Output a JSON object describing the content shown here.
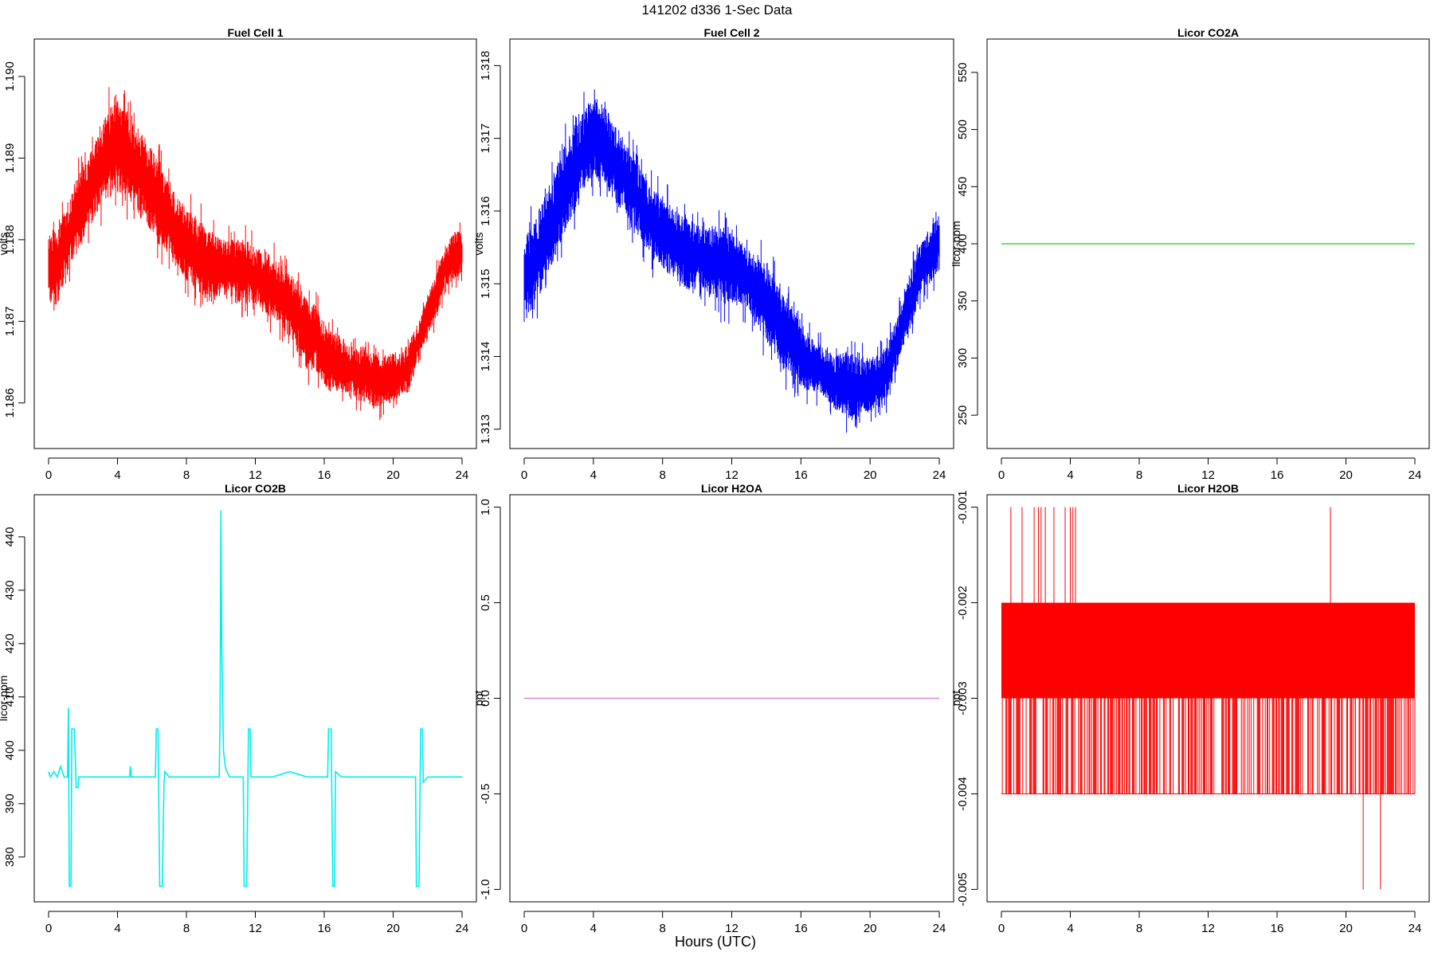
{
  "figure": {
    "main_title": "141202   d336   1-Sec Data",
    "x_axis_title": "Hours (UTC)"
  },
  "chart_data": [
    {
      "type": "line",
      "title": "Fuel Cell 1",
      "ylabel": "volts",
      "color": "#ff0000",
      "xlim": [
        0,
        24
      ],
      "ylim": [
        1.1855,
        1.1904
      ],
      "xticks": [
        0,
        4,
        8,
        12,
        16,
        20,
        24
      ],
      "yticks": [
        "1.186",
        "1.187",
        "1.188",
        "1.189",
        "1.190"
      ],
      "band": true,
      "x": [
        0,
        0.5,
        1,
        1.5,
        2,
        2.5,
        3,
        3.5,
        4,
        4.5,
        5,
        5.5,
        6,
        6.5,
        7,
        7.5,
        8,
        8.5,
        9,
        9.5,
        10,
        10.5,
        11,
        11.5,
        12,
        12.5,
        13,
        13.5,
        14,
        14.5,
        15,
        15.5,
        16,
        16.5,
        17,
        17.5,
        18,
        18.5,
        19,
        19.5,
        20,
        20.5,
        21,
        21.5,
        22,
        22.5,
        23,
        23.5,
        24
      ],
      "low": [
        1.1872,
        1.1872,
        1.1875,
        1.1878,
        1.188,
        1.1882,
        1.1884,
        1.1885,
        1.1886,
        1.1885,
        1.1884,
        1.1882,
        1.1881,
        1.1879,
        1.1878,
        1.1876,
        1.1875,
        1.1874,
        1.1873,
        1.1872,
        1.1873,
        1.1873,
        1.1872,
        1.1872,
        1.1872,
        1.1871,
        1.187,
        1.1869,
        1.1868,
        1.1866,
        1.1864,
        1.1864,
        1.1862,
        1.1861,
        1.1861,
        1.1861,
        1.186,
        1.186,
        1.1859,
        1.186,
        1.186,
        1.1861,
        1.1862,
        1.1866,
        1.1868,
        1.187,
        1.1874,
        1.1875,
        1.1876
      ],
      "high": [
        1.1881,
        1.1882,
        1.1884,
        1.1887,
        1.1889,
        1.1891,
        1.1894,
        1.1896,
        1.1897,
        1.1896,
        1.1894,
        1.1893,
        1.1891,
        1.1889,
        1.1887,
        1.1885,
        1.1884,
        1.1883,
        1.1882,
        1.1881,
        1.188,
        1.188,
        1.188,
        1.188,
        1.1879,
        1.1879,
        1.1878,
        1.1877,
        1.1876,
        1.1875,
        1.1873,
        1.1872,
        1.187,
        1.1869,
        1.1868,
        1.1867,
        1.1867,
        1.1867,
        1.1866,
        1.1866,
        1.1866,
        1.1866,
        1.1868,
        1.187,
        1.1873,
        1.1876,
        1.1879,
        1.1881,
        1.1881
      ]
    },
    {
      "type": "line",
      "title": "Fuel Cell 2",
      "ylabel": "volts",
      "color": "#0000ff",
      "xlim": [
        0,
        24
      ],
      "ylim": [
        1.3128,
        1.3183
      ],
      "xticks": [
        0,
        4,
        8,
        12,
        16,
        20,
        24
      ],
      "yticks": [
        "1.313",
        "1.314",
        "1.315",
        "1.316",
        "1.317",
        "1.318"
      ],
      "band": true,
      "x": [
        0,
        0.5,
        1,
        1.5,
        2,
        2.5,
        3,
        3.5,
        4,
        4.5,
        5,
        5.5,
        6,
        6.5,
        7,
        7.5,
        8,
        8.5,
        9,
        9.5,
        10,
        10.5,
        11,
        11.5,
        12,
        12.5,
        13,
        13.5,
        14,
        14.5,
        15,
        15.5,
        16,
        16.5,
        17,
        17.5,
        18,
        18.5,
        19,
        19.5,
        20,
        20.5,
        21,
        21.5,
        22,
        22.5,
        23,
        23.5,
        24
      ],
      "low": [
        1.3146,
        1.3146,
        1.3149,
        1.3152,
        1.3155,
        1.3158,
        1.316,
        1.3163,
        1.3165,
        1.3164,
        1.3162,
        1.316,
        1.3159,
        1.3157,
        1.3155,
        1.3153,
        1.3152,
        1.3151,
        1.315,
        1.3149,
        1.315,
        1.3149,
        1.3148,
        1.3147,
        1.3147,
        1.3147,
        1.3146,
        1.3144,
        1.3142,
        1.314,
        1.3138,
        1.3137,
        1.3136,
        1.3135,
        1.3135,
        1.3134,
        1.3133,
        1.3132,
        1.3131,
        1.3132,
        1.3132,
        1.3133,
        1.3134,
        1.3138,
        1.3142,
        1.3145,
        1.3149,
        1.315,
        1.3152
      ],
      "high": [
        1.3157,
        1.3158,
        1.3161,
        1.3164,
        1.3167,
        1.317,
        1.3172,
        1.3174,
        1.3176,
        1.3175,
        1.3173,
        1.3171,
        1.3169,
        1.3167,
        1.3165,
        1.3163,
        1.3162,
        1.3161,
        1.316,
        1.3159,
        1.3158,
        1.3158,
        1.3158,
        1.3158,
        1.3157,
        1.3156,
        1.3155,
        1.3154,
        1.3153,
        1.3151,
        1.3149,
        1.3147,
        1.3145,
        1.3143,
        1.3142,
        1.3141,
        1.314,
        1.3141,
        1.314,
        1.314,
        1.314,
        1.314,
        1.3142,
        1.3145,
        1.3149,
        1.3153,
        1.3156,
        1.3158,
        1.3159
      ]
    },
    {
      "type": "line",
      "title": "Licor CO2A",
      "ylabel": "licor-ppm",
      "color": "#33dd33",
      "xlim": [
        0,
        24
      ],
      "ylim": [
        225,
        575
      ],
      "xticks": [
        0,
        4,
        8,
        12,
        16,
        20,
        24
      ],
      "yticks": [
        "250",
        "300",
        "350",
        "400",
        "450",
        "500",
        "550"
      ],
      "x": [
        0,
        24
      ],
      "values": [
        400,
        400
      ]
    },
    {
      "type": "line",
      "title": "Licor CO2B",
      "ylabel": "licor-ppm",
      "color": "#00eeee",
      "xlim": [
        0,
        24
      ],
      "ylim": [
        372.5,
        447
      ],
      "xticks": [
        0,
        4,
        8,
        12,
        16,
        20,
        24
      ],
      "yticks": [
        "380",
        "390",
        "400",
        "410",
        "420",
        "430",
        "440"
      ],
      "x": [
        0,
        0.1,
        0.3,
        0.5,
        0.7,
        0.9,
        1.1,
        1.15,
        1.2,
        1.25,
        1.3,
        1.35,
        1.45,
        1.5,
        1.6,
        1.7,
        1.75,
        2.0,
        3.0,
        4.0,
        4.7,
        4.75,
        4.8,
        5.5,
        6.2,
        6.25,
        6.3,
        6.35,
        6.45,
        6.5,
        6.6,
        6.7,
        6.75,
        7.0,
        8.0,
        9.0,
        9.5,
        9.9,
        9.95,
        10.0,
        10.05,
        10.1,
        10.15,
        10.25,
        10.35,
        10.5,
        11.0,
        11.3,
        11.35,
        11.45,
        11.5,
        11.6,
        11.7,
        11.75,
        12.0,
        13.0,
        14.0,
        15.0,
        16.0,
        16.2,
        16.25,
        16.35,
        16.4,
        16.5,
        16.6,
        16.65,
        17.0,
        18.0,
        19.0,
        20.0,
        21.0,
        21.3,
        21.35,
        21.45,
        21.5,
        21.6,
        21.7,
        21.75,
        22.0,
        23.0,
        24.0
      ],
      "values": [
        396,
        395,
        396,
        395,
        397,
        395,
        395,
        408,
        374.5,
        374.5,
        374.5,
        404,
        404,
        404,
        393,
        393,
        395,
        395,
        395,
        395,
        395,
        397,
        395,
        395,
        395,
        404,
        404,
        404,
        374.5,
        374.5,
        374.5,
        394,
        396,
        395,
        395,
        395,
        395,
        395,
        405,
        445,
        420,
        410,
        400,
        397,
        396,
        395,
        395,
        395,
        374.5,
        374.5,
        374.5,
        404,
        404,
        395,
        395,
        395,
        396,
        395,
        395,
        395,
        404,
        404,
        404,
        374.5,
        374.5,
        396,
        395,
        395,
        395,
        395,
        395,
        395,
        374.5,
        374.5,
        374.5,
        404,
        404,
        394,
        395,
        395,
        395
      ]
    },
    {
      "type": "line",
      "title": "Licor H2OA",
      "ylabel": "ppt",
      "color": "#dd88dd",
      "xlim": [
        0,
        24
      ],
      "ylim": [
        -1.04,
        1.04
      ],
      "xticks": [
        0,
        4,
        8,
        12,
        16,
        20,
        24
      ],
      "yticks": [
        "-1.0",
        "-0.5",
        "0.0",
        "0.5",
        "1.0"
      ],
      "x": [
        0,
        24
      ],
      "values": [
        0,
        0
      ]
    },
    {
      "type": "line",
      "title": "Licor H2OB",
      "ylabel": "ppt",
      "color": "#ff0000",
      "xlim": [
        0,
        24
      ],
      "ylim": [
        -0.00508,
        -0.00092
      ],
      "xticks": [
        0,
        4,
        8,
        12,
        16,
        20,
        24
      ],
      "yticks": [
        "-0.005",
        "-0.004",
        "-0.003",
        "-0.002",
        "-0.001"
      ],
      "band": true,
      "x": [
        0,
        24
      ],
      "low": [
        -0.004,
        -0.004
      ],
      "high": [
        -0.002,
        -0.002
      ],
      "core_low": -0.003,
      "spikes_up_x": [
        0.55,
        1.2,
        1.9,
        2.15,
        2.3,
        2.55,
        3.05,
        3.7,
        4.0,
        4.15,
        4.3,
        19.1
      ],
      "spikes_up_value": -0.001,
      "spikes_down_x": [
        21.0,
        22.0
      ],
      "spikes_down_value": -0.005
    }
  ]
}
